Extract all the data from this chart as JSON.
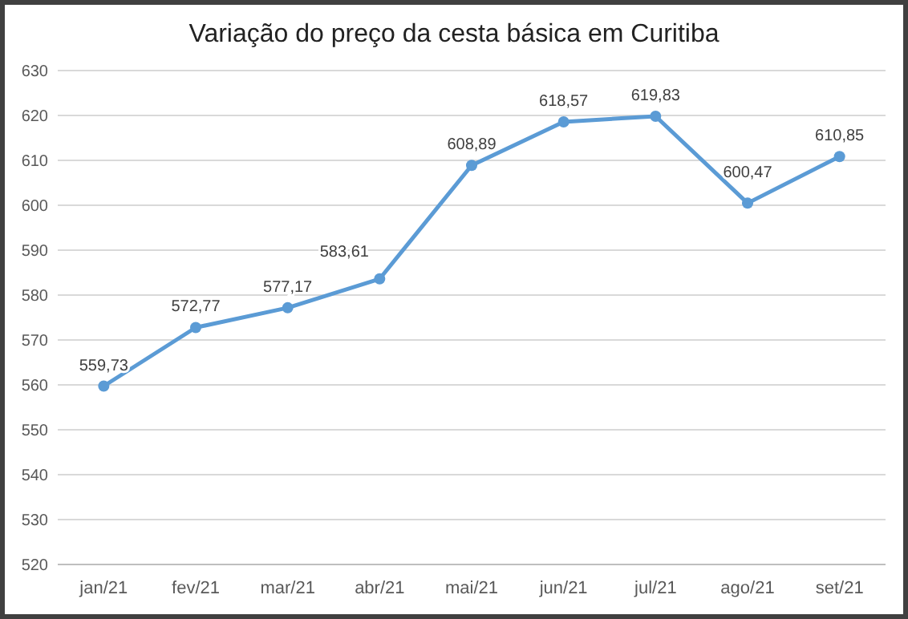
{
  "chart_data": {
    "type": "line",
    "title": "Variação do preço da cesta básica em Curitiba",
    "categories": [
      "jan/21",
      "fev/21",
      "mar/21",
      "abr/21",
      "mai/21",
      "jun/21",
      "jul/21",
      "ago/21",
      "set/21"
    ],
    "series": [
      {
        "color": "#5b9bd5",
        "values": [
          559.73,
          572.77,
          577.17,
          583.61,
          608.89,
          618.57,
          619.83,
          600.47,
          610.85
        ],
        "value_labels": [
          "559,73",
          "572,77",
          "577,17",
          "583,61",
          "608,89",
          "618,57",
          "619,83",
          "600,47",
          "610,85"
        ]
      }
    ],
    "ylim": [
      520,
      630
    ],
    "yticks": [
      520,
      530,
      540,
      550,
      560,
      570,
      580,
      590,
      600,
      610,
      620,
      630
    ],
    "grid": "y",
    "marker": "circle",
    "line_style": "solid"
  }
}
